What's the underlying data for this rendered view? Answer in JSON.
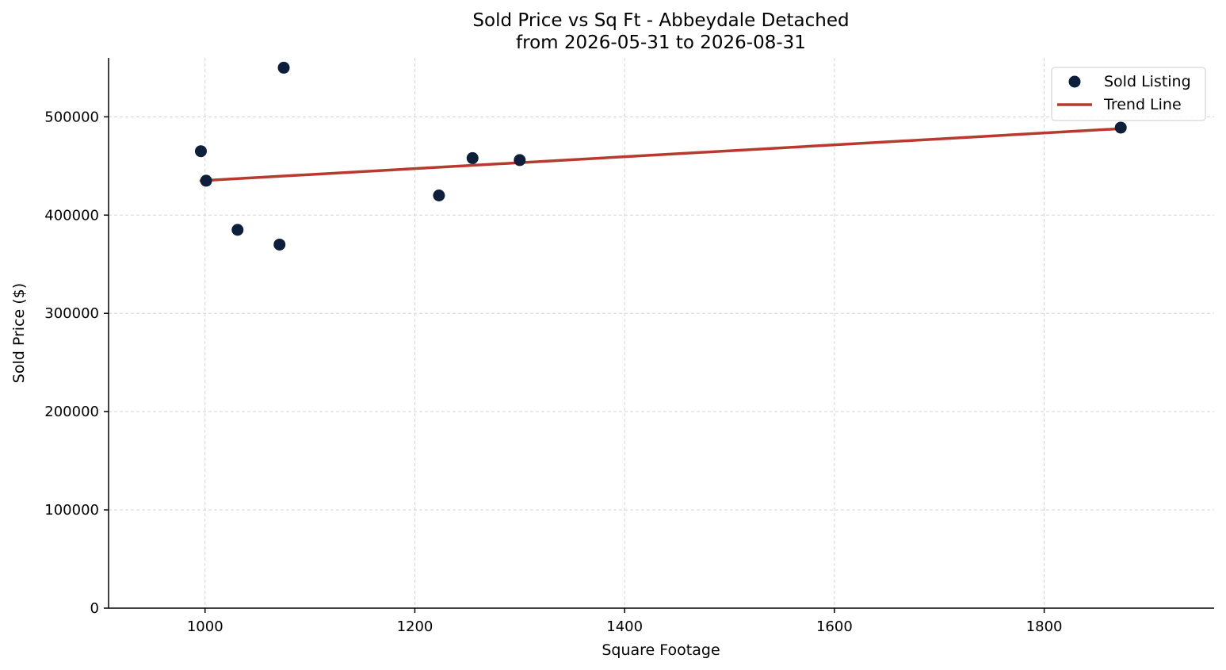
{
  "chart_data": {
    "type": "scatter",
    "title": "Sold Price vs Sq Ft - Abbeydale Detached",
    "subtitle": "from 2026-05-31 to 2026-08-31",
    "xlabel": "Square Footage",
    "ylabel": "Sold Price ($)",
    "xlim": [
      908,
      1962
    ],
    "ylim": [
      0,
      560000
    ],
    "xticks": [
      1000,
      1200,
      1400,
      1600,
      1800
    ],
    "yticks": [
      0,
      100000,
      200000,
      300000,
      400000,
      500000
    ],
    "grid": true,
    "legend_position": "top-right",
    "series": [
      {
        "name": "Sold Listing",
        "kind": "points",
        "color": "#0d1f3a",
        "points": [
          {
            "x": 996,
            "y": 465000
          },
          {
            "x": 1001,
            "y": 435000
          },
          {
            "x": 1031,
            "y": 385000
          },
          {
            "x": 1071,
            "y": 370000
          },
          {
            "x": 1075,
            "y": 550000
          },
          {
            "x": 1223,
            "y": 420000
          },
          {
            "x": 1255,
            "y": 458000
          },
          {
            "x": 1300,
            "y": 456000
          },
          {
            "x": 1873,
            "y": 489000
          }
        ]
      },
      {
        "name": "Trend Line",
        "kind": "line",
        "color": "#b83a2e",
        "points": [
          {
            "x": 996,
            "y": 435000
          },
          {
            "x": 1873,
            "y": 488000
          }
        ]
      }
    ]
  }
}
